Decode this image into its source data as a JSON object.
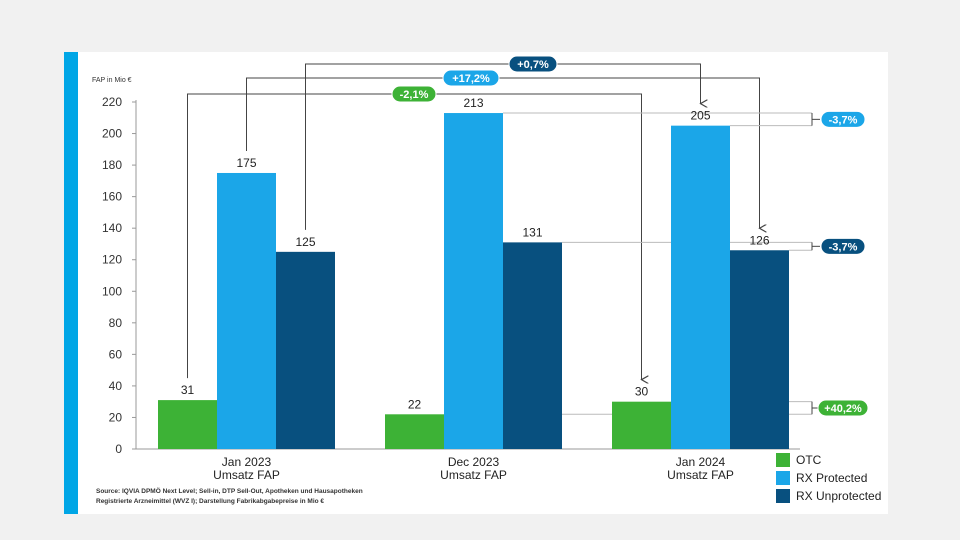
{
  "chart_data": {
    "type": "bar",
    "unit_label": "FAP in Mio €",
    "categories": [
      [
        "Jan 2023",
        "Umsatz FAP"
      ],
      [
        "Dec 2023",
        "Umsatz FAP"
      ],
      [
        "Jan 2024",
        "Umsatz FAP"
      ]
    ],
    "series": [
      {
        "name": "OTC",
        "color": "#3db236",
        "values": [
          31,
          22,
          30
        ]
      },
      {
        "name": "RX Protected",
        "color": "#1ba6e8",
        "values": [
          175,
          213,
          205
        ]
      },
      {
        "name": "RX Unprotected",
        "color": "#08507f",
        "values": [
          125,
          131,
          126
        ]
      }
    ],
    "ylim": [
      0,
      220
    ],
    "yticks": [
      0,
      20,
      40,
      60,
      80,
      100,
      120,
      140,
      160,
      180,
      200,
      220
    ],
    "grid": false,
    "legend_position": "bottom-right",
    "annotations": [
      {
        "text": "+0,7%",
        "color": "#08507f",
        "from": "Jan 2023 RX Unprotected",
        "to": "Jan 2024 RX Protected"
      },
      {
        "text": "+17,2%",
        "color": "#1ba6e8",
        "from": "Jan 2023 RX Protected",
        "to": "Jan 2024 RX Unprotected"
      },
      {
        "text": "-2,1%",
        "color": "#3db236",
        "from": "Jan 2023 OTC",
        "to": "Jan 2024 OTC"
      },
      {
        "text": "-3,7%",
        "color": "#1ba6e8",
        "compares": "RX Protected Dec 2023 vs Jan 2024"
      },
      {
        "text": "-3,7%",
        "color": "#08507f",
        "compares": "RX Unprotected Dec 2023 vs Jan 2024"
      },
      {
        "text": "+40,2%",
        "color": "#3db236",
        "compares": "OTC Dec 2023 vs Jan 2024"
      }
    ]
  },
  "source": {
    "line1": "Source: IQVIA DPMÖ Next Level; Sell-in, DTP Sell-Out, Apotheken und Hausapotheken",
    "line2": "Registrierte Arzneimittel (WVZ I); Darstellung Fabrikabgabepreise in Mio €"
  }
}
